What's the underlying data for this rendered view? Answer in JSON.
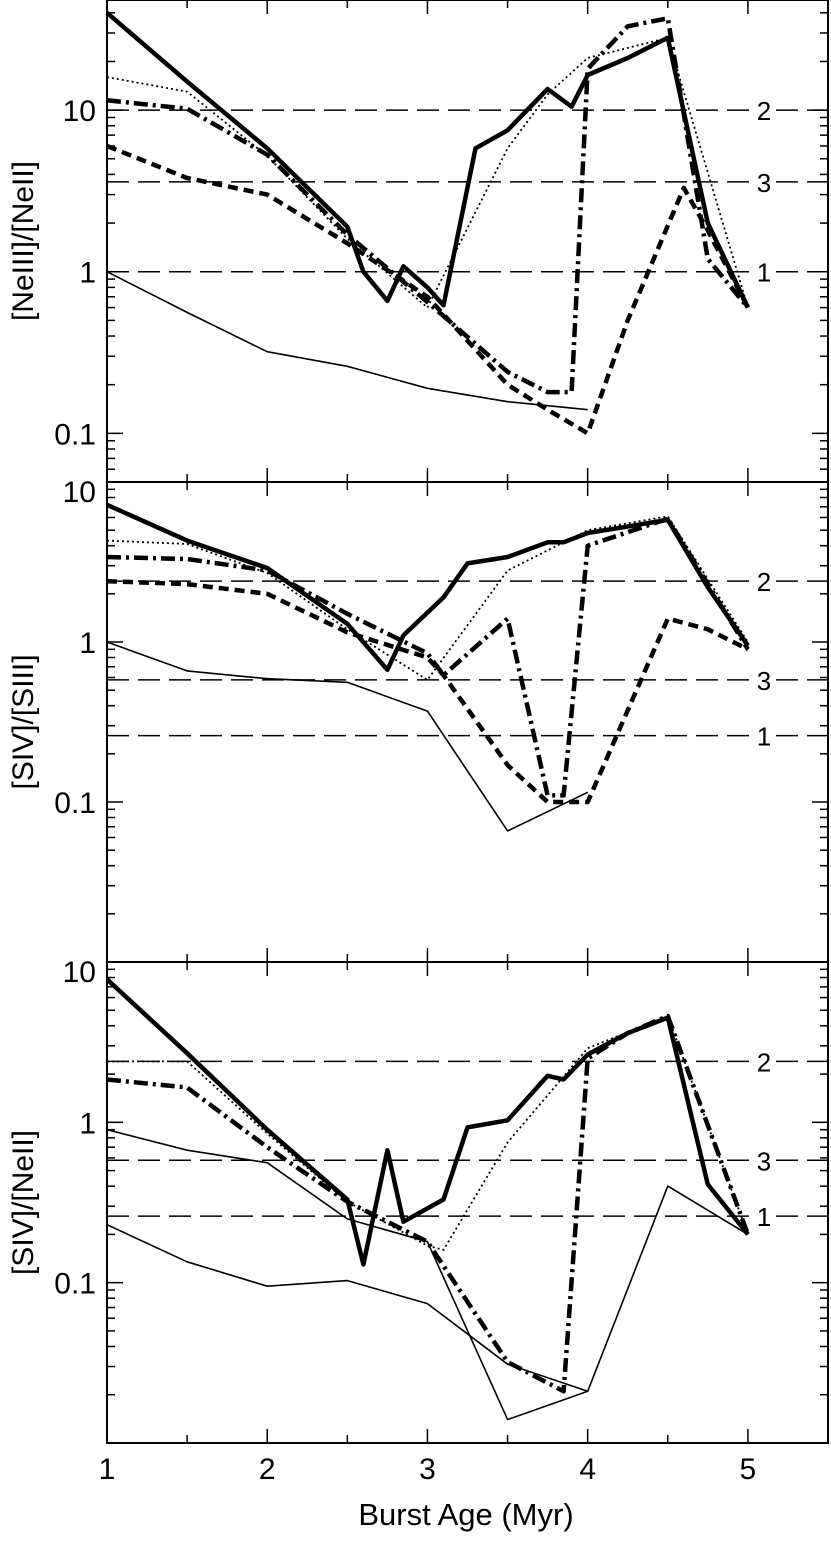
{
  "chart_data": [
    {
      "type": "line",
      "ylabel": "[NeIII]/[NeII]",
      "yscale": "log",
      "ylim": [
        0.05,
        48
      ],
      "xlim": [
        1,
        5.5
      ],
      "ytick_labels": [
        {
          "v": 10,
          "t": "10"
        },
        {
          "v": 1,
          "t": "1"
        },
        {
          "v": 0.1,
          "t": "0.1"
        }
      ],
      "reference_lines": [
        {
          "label": "2",
          "y": 10
        },
        {
          "label": "3",
          "y": 3.6
        },
        {
          "label": "1",
          "y": 1.0
        }
      ],
      "series": [
        {
          "style": "thick",
          "x": [
            1,
            1.5,
            2,
            2.5,
            2.6,
            2.75,
            2.85,
            3.0,
            3.1,
            3.3,
            3.5,
            3.75,
            3.9,
            4.0,
            4.25,
            4.5,
            4.75,
            5.0
          ],
          "y": [
            40,
            15,
            5.8,
            1.9,
            1.0,
            0.66,
            1.08,
            0.8,
            0.62,
            5.8,
            7.5,
            13.5,
            10.5,
            16.5,
            21,
            28,
            2.0,
            0.6
          ]
        },
        {
          "style": "dotted",
          "x": [
            1,
            1.5,
            2,
            2.5,
            3.0,
            3.5,
            3.75,
            4.0,
            4.5,
            5.0
          ],
          "y": [
            16,
            13,
            5.2,
            1.6,
            0.6,
            5.8,
            12.5,
            21,
            28,
            0.6
          ]
        },
        {
          "style": "dashdot",
          "x": [
            1,
            1.5,
            2,
            2.5,
            3.0,
            3.5,
            3.75,
            3.9,
            4.0,
            4.25,
            4.5,
            4.75,
            5.0
          ],
          "y": [
            11.5,
            10.2,
            5.3,
            1.7,
            0.65,
            0.24,
            0.18,
            0.18,
            18,
            33,
            37,
            1.2,
            0.6
          ]
        },
        {
          "style": "dashed",
          "x": [
            1,
            1.5,
            2,
            2.5,
            3.0,
            3.5,
            3.75,
            4.0,
            4.25,
            4.6,
            4.75,
            5.0
          ],
          "y": [
            6,
            3.8,
            3.0,
            1.5,
            0.7,
            0.2,
            0.14,
            0.1,
            0.5,
            3.3,
            1.8,
            0.6
          ]
        },
        {
          "style": "thin",
          "x": [
            1,
            1.5,
            2,
            2.5,
            3.0,
            3.5,
            4.0
          ],
          "y": [
            1.0,
            0.56,
            0.32,
            0.26,
            0.19,
            0.157,
            0.14
          ]
        }
      ]
    },
    {
      "type": "line",
      "ylabel": "[SIV]/[SIII]",
      "yscale": "log",
      "ylim": [
        0.01,
        10
      ],
      "xlim": [
        1,
        5.5
      ],
      "ytick_labels": [
        {
          "v": 10,
          "t": "10"
        },
        {
          "v": 1,
          "t": "1"
        },
        {
          "v": 0.1,
          "t": "0.1"
        }
      ],
      "reference_lines": [
        {
          "label": "2",
          "y": 2.4
        },
        {
          "label": "3",
          "y": 0.58
        },
        {
          "label": "1",
          "y": 0.26
        }
      ],
      "series": [
        {
          "style": "thick",
          "x": [
            1,
            1.5,
            2,
            2.5,
            2.75,
            2.85,
            3.1,
            3.25,
            3.5,
            3.75,
            3.85,
            4.0,
            4.5,
            4.75,
            5.0
          ],
          "y": [
            7.2,
            4.3,
            2.9,
            1.3,
            0.67,
            1.1,
            1.9,
            3.1,
            3.4,
            4.2,
            4.2,
            4.8,
            5.8,
            2.2,
            0.95
          ]
        },
        {
          "style": "dotted",
          "x": [
            1,
            1.5,
            2,
            2.5,
            3.0,
            3.5,
            4.0,
            4.5,
            5.0
          ],
          "y": [
            4.3,
            4.1,
            2.7,
            1.2,
            0.58,
            2.8,
            5.0,
            6.1,
            1.0
          ]
        },
        {
          "style": "dashdot",
          "x": [
            1,
            1.5,
            2,
            2.5,
            3.0,
            3.1,
            3.5,
            3.75,
            3.85,
            4.0,
            4.5,
            5.0
          ],
          "y": [
            3.4,
            3.3,
            2.8,
            1.5,
            0.85,
            0.62,
            1.4,
            0.11,
            0.11,
            4.0,
            5.9,
            0.9
          ]
        },
        {
          "style": "dashed",
          "x": [
            1,
            1.5,
            2,
            2.5,
            3.0,
            3.1,
            3.5,
            3.75,
            4.0,
            4.5,
            4.75,
            5.0
          ],
          "y": [
            2.4,
            2.3,
            2.0,
            1.15,
            0.8,
            0.62,
            0.17,
            0.1,
            0.1,
            1.4,
            1.2,
            0.9
          ]
        },
        {
          "style": "thin",
          "x": [
            1,
            1.5,
            2,
            2.5,
            3.0,
            3.5,
            4.0
          ],
          "y": [
            1.0,
            0.66,
            0.59,
            0.56,
            0.37,
            0.066,
            0.115
          ]
        }
      ]
    },
    {
      "type": "line",
      "ylabel": "[SIV]/[NeII]",
      "yscale": "log",
      "ylim": [
        0.01,
        10
      ],
      "xlim": [
        1,
        5.5
      ],
      "xlabel": "Burst Age (Myr)",
      "xticks": [
        1,
        2,
        3,
        4,
        5
      ],
      "ytick_labels": [
        {
          "v": 10,
          "t": "10"
        },
        {
          "v": 1,
          "t": "1"
        },
        {
          "v": 0.1,
          "t": "0.1"
        }
      ],
      "reference_lines": [
        {
          "label": "2",
          "y": 2.4
        },
        {
          "label": "3",
          "y": 0.58
        },
        {
          "label": "1",
          "y": 0.26
        }
      ],
      "series": [
        {
          "style": "thick",
          "x": [
            1,
            1.5,
            2,
            2.5,
            2.6,
            2.75,
            2.85,
            3.1,
            3.25,
            3.5,
            3.75,
            3.85,
            4.0,
            4.25,
            4.5,
            4.75,
            5.0
          ],
          "y": [
            7.8,
            2.7,
            0.9,
            0.33,
            0.13,
            0.67,
            0.24,
            0.33,
            0.93,
            1.03,
            1.95,
            1.85,
            2.65,
            3.6,
            4.5,
            0.41,
            0.2
          ]
        },
        {
          "style": "dotted",
          "x": [
            1,
            1.5,
            2,
            2.5,
            3.0,
            3.1,
            3.5,
            4.0,
            4.5,
            5.0
          ],
          "y": [
            2.4,
            2.4,
            0.85,
            0.32,
            0.17,
            0.16,
            0.75,
            2.9,
            4.6,
            0.2
          ]
        },
        {
          "style": "dashdot",
          "x": [
            1,
            1.5,
            2,
            2.5,
            3.0,
            3.5,
            3.85,
            4.0,
            4.25,
            4.5,
            5.0
          ],
          "y": [
            1.85,
            1.65,
            0.7,
            0.32,
            0.18,
            0.032,
            0.021,
            2.5,
            3.6,
            4.6,
            0.2
          ]
        },
        {
          "style": "thin",
          "x": [
            1,
            1.5,
            2,
            2.5,
            3.0,
            3.5,
            4.0,
            4.5,
            5.0
          ],
          "y": [
            0.9,
            0.67,
            0.56,
            0.25,
            0.18,
            0.014,
            0.021,
            0.4,
            0.2
          ]
        },
        {
          "style": "thin",
          "x": [
            1,
            1.5,
            2,
            2.5,
            3.0,
            3.5,
            4.0
          ],
          "y": [
            0.23,
            0.135,
            0.095,
            0.103,
            0.074,
            0.031,
            0.021
          ]
        }
      ]
    }
  ]
}
